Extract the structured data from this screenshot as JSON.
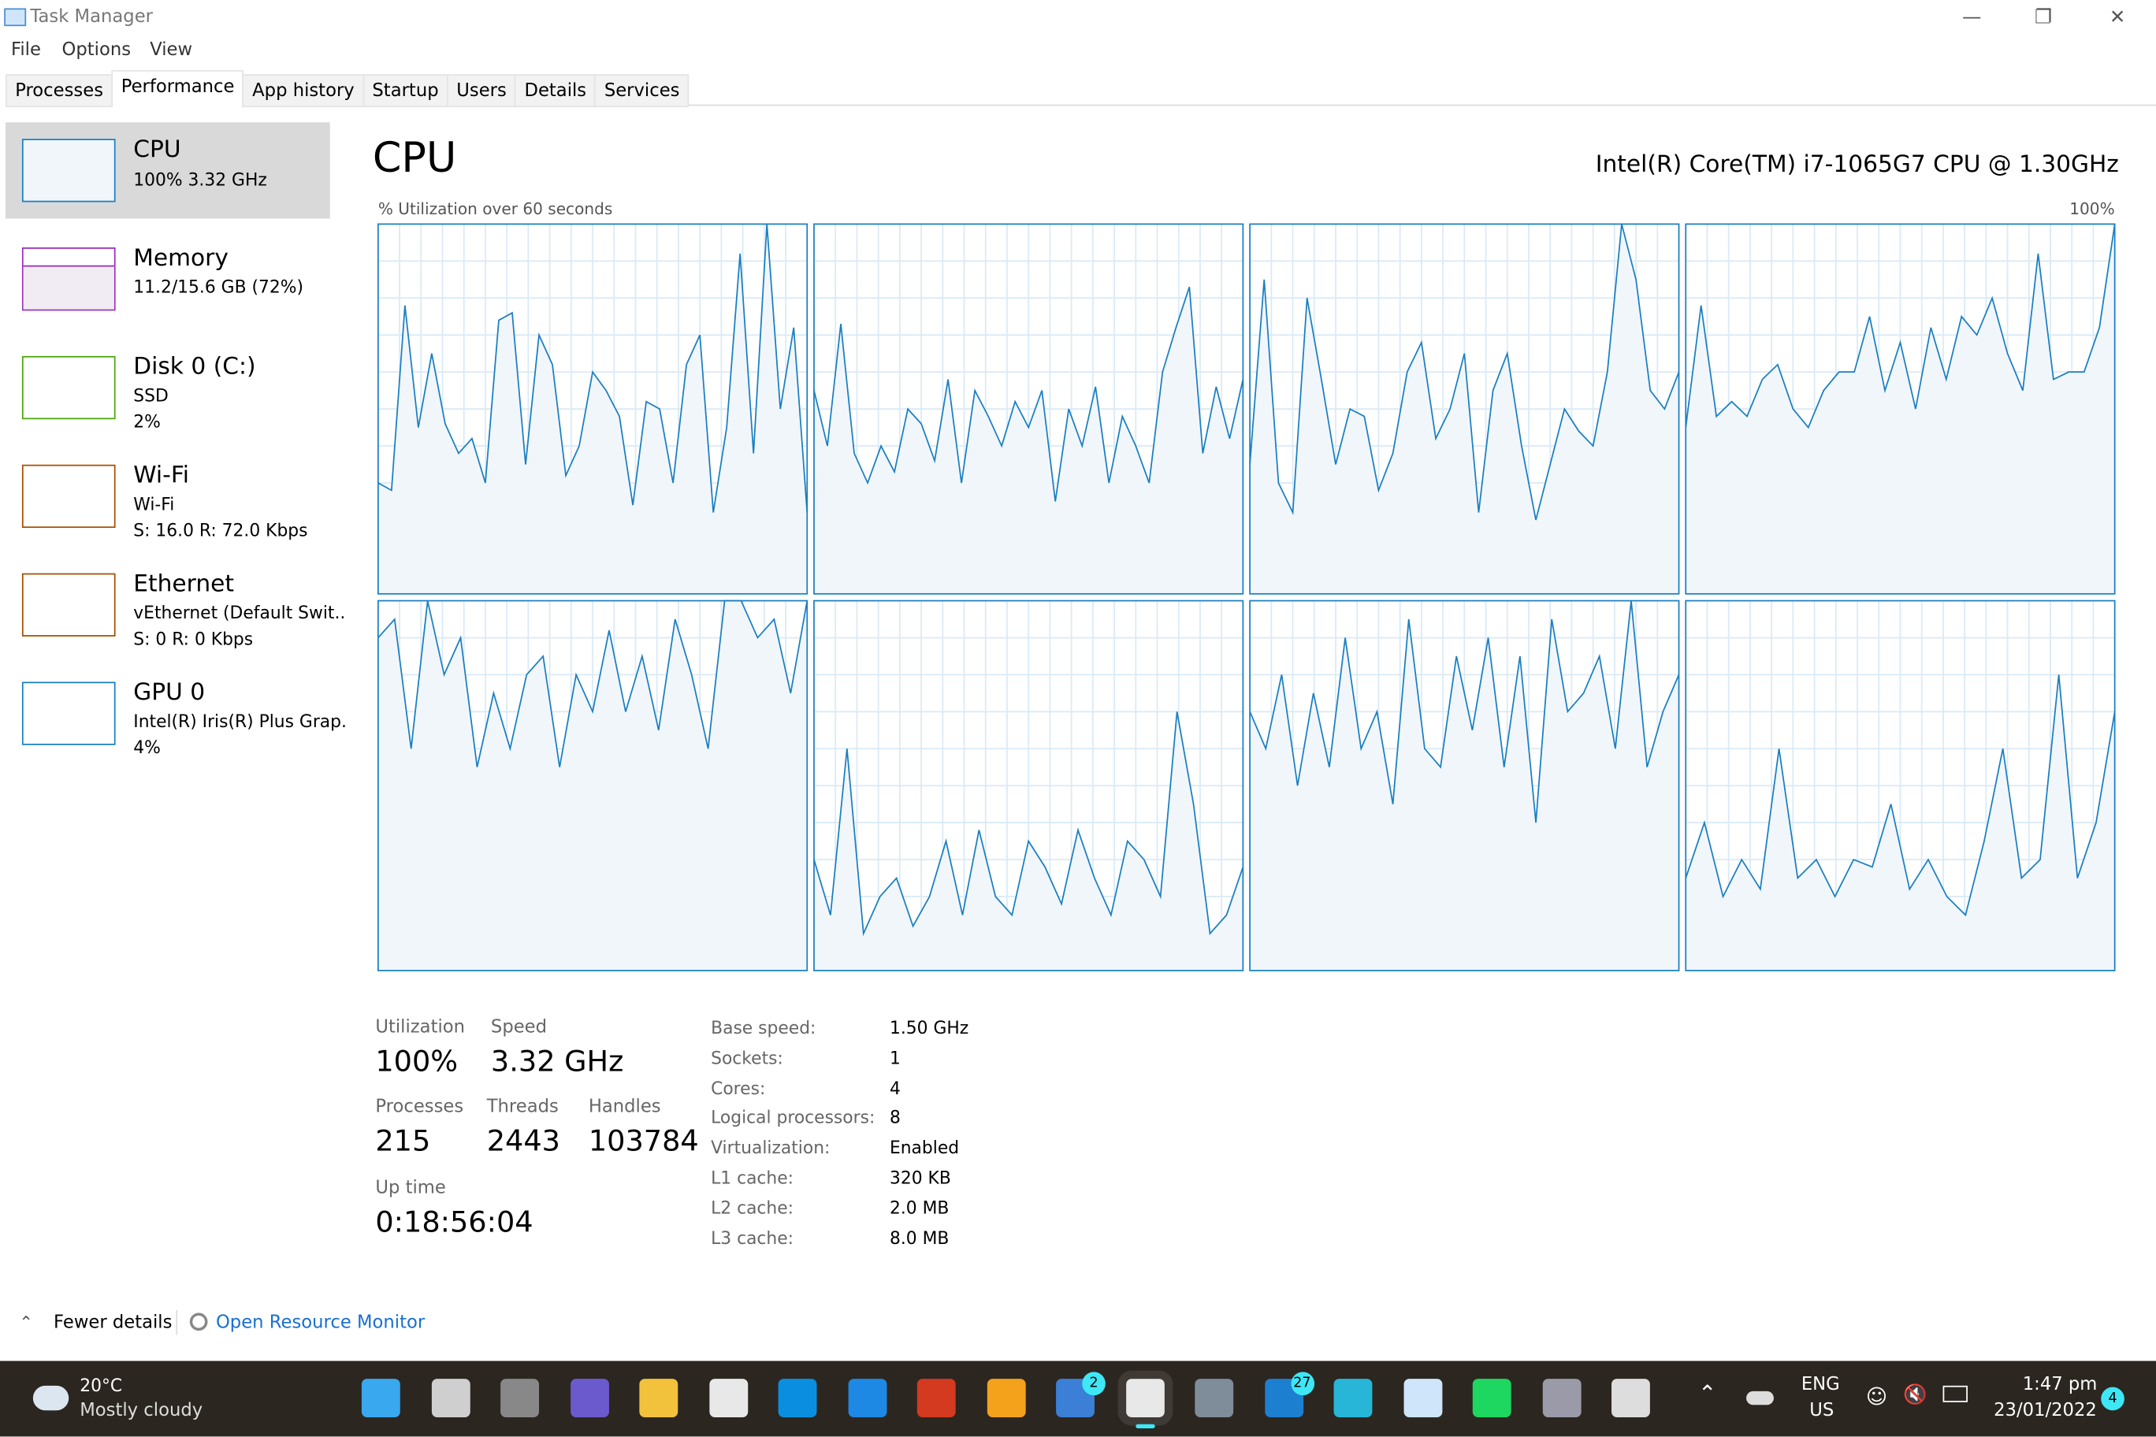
{
  "window": {
    "title": "Task Manager",
    "controls": [
      "minimize",
      "restore",
      "close"
    ]
  },
  "menu": [
    "File",
    "Options",
    "View"
  ],
  "tabs": [
    "Processes",
    "Performance",
    "App history",
    "Startup",
    "Users",
    "Details",
    "Services"
  ],
  "active_tab": "Performance",
  "sidebar": [
    {
      "name": "CPU",
      "line1": "100%  3.32 GHz",
      "line2": "",
      "color": "#1a7fc1",
      "selected": true
    },
    {
      "name": "Memory",
      "line1": "11.2/15.6 GB (72%)",
      "line2": "",
      "color": "#9b2cbd",
      "fill": 0.72
    },
    {
      "name": "Disk 0 (C:)",
      "line1": "SSD",
      "line2": "2%",
      "color": "#4da60c"
    },
    {
      "name": "Wi-Fi",
      "line1": "Wi-Fi",
      "line2": "S: 16.0  R: 72.0 Kbps",
      "color": "#a74f01"
    },
    {
      "name": "Ethernet",
      "line1": "vEthernet (Default Swit..",
      "line2": "S: 0  R: 0 Kbps",
      "color": "#a74f01"
    },
    {
      "name": "GPU 0",
      "line1": "Intel(R) Iris(R) Plus Grap.",
      "line2": "4%",
      "color": "#1a7fc1"
    }
  ],
  "main": {
    "title": "CPU",
    "model": "Intel(R) Core(TM) i7-1065G7 CPU @ 1.30GHz",
    "graph_label": "% Utilization over 60 seconds",
    "graph_max": "100%",
    "stats": {
      "utilization_label": "Utilization",
      "utilization": "100%",
      "speed_label": "Speed",
      "speed": "3.32 GHz",
      "processes_label": "Processes",
      "processes": "215",
      "threads_label": "Threads",
      "threads": "2443",
      "handles_label": "Handles",
      "handles": "103784",
      "uptime_label": "Up time",
      "uptime": "0:18:56:04"
    },
    "specs": [
      {
        "k": "Base speed:",
        "v": "1.50 GHz"
      },
      {
        "k": "Sockets:",
        "v": "1"
      },
      {
        "k": "Cores:",
        "v": "4"
      },
      {
        "k": "Logical processors:",
        "v": "8"
      },
      {
        "k": "Virtualization:",
        "v": "Enabled"
      },
      {
        "k": "L1 cache:",
        "v": "320 KB"
      },
      {
        "k": "L2 cache:",
        "v": "2.0 MB"
      },
      {
        "k": "L3 cache:",
        "v": "8.0 MB"
      }
    ]
  },
  "chart_data": {
    "type": "area",
    "ylim": [
      0,
      100
    ],
    "xlabel": "",
    "ylabel": "",
    "series_color": "#1a7fc1",
    "series": [
      {
        "values": [
          30,
          28,
          78,
          45,
          65,
          46,
          38,
          42,
          30,
          74,
          76,
          35,
          70,
          62,
          32,
          40,
          60,
          55,
          48,
          24,
          52,
          50,
          30,
          62,
          70,
          22,
          45,
          92,
          38,
          100,
          50,
          72,
          22
        ]
      },
      {
        "values": [
          55,
          40,
          73,
          38,
          30,
          40,
          33,
          50,
          46,
          36,
          58,
          30,
          55,
          48,
          40,
          52,
          45,
          55,
          25,
          50,
          40,
          56,
          30,
          48,
          40,
          30,
          60,
          72,
          83,
          38,
          56,
          42,
          58
        ]
      },
      {
        "values": [
          35,
          85,
          30,
          22,
          80,
          58,
          35,
          50,
          48,
          28,
          38,
          60,
          68,
          42,
          50,
          65,
          22,
          55,
          65,
          40,
          20,
          35,
          50,
          44,
          40,
          60,
          100,
          85,
          55,
          50,
          60
        ]
      },
      {
        "values": [
          45,
          78,
          48,
          52,
          48,
          58,
          62,
          50,
          45,
          55,
          60,
          60,
          75,
          55,
          68,
          50,
          72,
          58,
          75,
          70,
          80,
          65,
          55,
          92,
          58,
          60,
          60,
          72,
          100
        ]
      },
      {
        "values": [
          90,
          95,
          60,
          100,
          80,
          90,
          55,
          75,
          60,
          80,
          85,
          55,
          80,
          70,
          92,
          70,
          85,
          65,
          95,
          80,
          60,
          100,
          100,
          90,
          95,
          75,
          100
        ]
      },
      {
        "values": [
          30,
          15,
          60,
          10,
          20,
          25,
          12,
          20,
          35,
          15,
          38,
          20,
          15,
          35,
          28,
          18,
          38,
          25,
          15,
          35,
          30,
          20,
          70,
          45,
          10,
          15,
          28
        ]
      },
      {
        "values": [
          70,
          60,
          80,
          50,
          75,
          55,
          90,
          60,
          70,
          45,
          95,
          60,
          55,
          85,
          65,
          90,
          55,
          85,
          40,
          95,
          70,
          75,
          85,
          60,
          100,
          55,
          70,
          80
        ]
      },
      {
        "values": [
          25,
          40,
          20,
          30,
          22,
          60,
          25,
          30,
          20,
          30,
          28,
          45,
          22,
          30,
          20,
          15,
          35,
          60,
          25,
          30,
          80,
          25,
          40,
          70
        ]
      }
    ]
  },
  "footer": {
    "fewer_details": "Fewer details",
    "resource_monitor": "Open Resource Monitor"
  },
  "taskbar": {
    "weather_temp": "20°C",
    "weather_desc": "Mostly cloudy",
    "apps": [
      {
        "icon": "windows-start-icon",
        "color": "#3aa8ef"
      },
      {
        "icon": "search-icon",
        "color": "#cfcfcf"
      },
      {
        "icon": "task-view-icon",
        "color": "#888"
      },
      {
        "icon": "teams-chat-icon",
        "color": "#6a5acd"
      },
      {
        "icon": "file-explorer-icon",
        "color": "#f3c23c"
      },
      {
        "icon": "store-icon",
        "color": "#e8e8e8"
      },
      {
        "icon": "skype-icon",
        "color": "#0a8fe0"
      },
      {
        "icon": "mail-icon",
        "color": "#1e88e5"
      },
      {
        "icon": "office-icon",
        "color": "#d33a1f"
      },
      {
        "icon": "weather-app-icon",
        "color": "#f4a21c"
      },
      {
        "icon": "todo-icon",
        "color": "#3b7fd6",
        "badge": "2"
      },
      {
        "icon": "snipping-tool-icon",
        "color": "#e8e8e8",
        "active": true
      },
      {
        "icon": "settings-icon",
        "color": "#7f8c99"
      },
      {
        "icon": "news-icon",
        "color": "#1d7fd0",
        "badge": "27"
      },
      {
        "icon": "azure-data-icon",
        "color": "#27b6d8"
      },
      {
        "icon": "task-manager-icon",
        "color": "#cfe6fa"
      },
      {
        "icon": "spotify-icon",
        "color": "#1ed760"
      },
      {
        "icon": "app-icon",
        "color": "#9a9aa8"
      },
      {
        "icon": "clock-app-icon",
        "color": "#ddd"
      }
    ],
    "lang": "ENG",
    "region": "US",
    "time": "1:47 pm",
    "date": "23/01/2022",
    "notifications": "4"
  }
}
